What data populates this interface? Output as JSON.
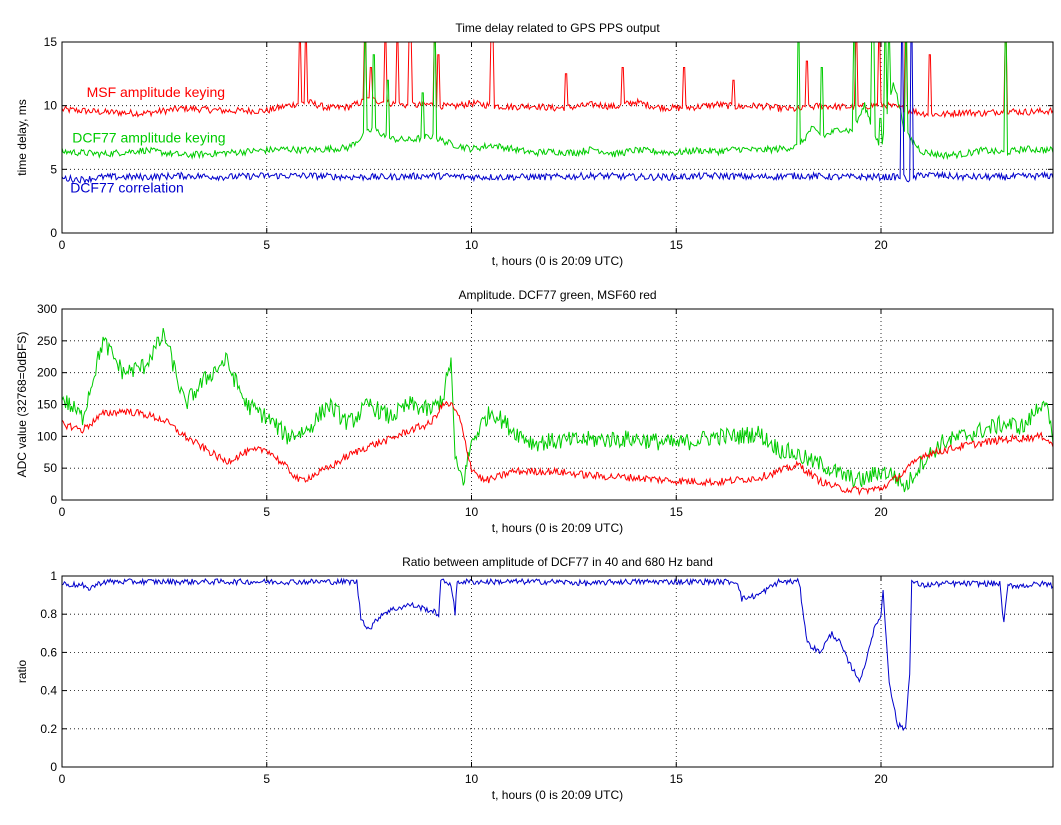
{
  "chart_data": [
    {
      "type": "line",
      "title": "Time delay related to GPS PPS output",
      "xlabel": "t, hours (0 is 20:09 UTC)",
      "ylabel": "time delay, ms",
      "xlim": [
        0,
        24.2
      ],
      "ylim": [
        0,
        15
      ],
      "xticks": [
        "0",
        "5",
        "10",
        "15",
        "20"
      ],
      "yticks": [
        "0",
        "5",
        "10",
        "15"
      ],
      "grid": true,
      "annotations": [
        {
          "text": "MSF amplitude keying",
          "color": "#ff0000",
          "x": 0.6,
          "y": 10.7
        },
        {
          "text": "DCF77 amplitude keying",
          "color": "#00cc00",
          "x": 0.25,
          "y": 7.1
        },
        {
          "text": "DCF77 correlation",
          "color": "#0000cc",
          "x": 0.2,
          "y": 3.2
        }
      ],
      "series": [
        {
          "color": "#ff0000",
          "x": [
            0,
            1,
            2,
            3,
            4,
            5,
            5.5,
            6,
            6.5,
            7,
            7.5,
            8,
            8.5,
            9,
            9.5,
            10,
            10.5,
            11,
            11.5,
            12,
            12.5,
            13,
            13.5,
            14,
            14.5,
            15,
            15.5,
            16,
            16.5,
            17,
            17.5,
            18,
            18.5,
            19,
            19.5,
            20,
            20.5,
            21,
            21.5,
            22,
            22.5,
            23,
            23.5,
            24.2
          ],
          "y": [
            9.7,
            9.5,
            9.4,
            9.8,
            9.6,
            9.6,
            10,
            10.3,
            9.8,
            9.9,
            10.5,
            10.2,
            10,
            10.1,
            9.9,
            10.2,
            10,
            9.9,
            10,
            9.8,
            9.9,
            10.1,
            9.9,
            10.3,
            9.9,
            9.8,
            9.9,
            10.1,
            9.9,
            10,
            9.8,
            9.7,
            10,
            9.9,
            9.9,
            10.1,
            9.8,
            9.4,
            9.3,
            9.5,
            9.4,
            9.6,
            9.5,
            9.6
          ],
          "spikes": [
            [
              5.8,
              15
            ],
            [
              5.95,
              15
            ],
            [
              7.4,
              15
            ],
            [
              7.55,
              13
            ],
            [
              7.9,
              15
            ],
            [
              8.2,
              15
            ],
            [
              8.5,
              15
            ],
            [
              9.1,
              15
            ],
            [
              9.2,
              14
            ],
            [
              10.5,
              15
            ],
            [
              12.3,
              12.5
            ],
            [
              13.7,
              13
            ],
            [
              15.2,
              13
            ],
            [
              16.4,
              12
            ],
            [
              18.2,
              13.5
            ],
            [
              19.4,
              15
            ],
            [
              19.95,
              15
            ],
            [
              20.6,
              15
            ],
            [
              21.2,
              14
            ],
            [
              23.05,
              15
            ]
          ]
        },
        {
          "color": "#00cc00",
          "x": [
            0,
            1,
            2,
            3,
            4,
            5,
            5.5,
            6,
            6.5,
            7,
            7.3,
            7.6,
            8,
            8.5,
            9,
            9.5,
            10,
            10.5,
            11,
            11.5,
            12,
            12.5,
            13,
            13.5,
            14,
            14.5,
            15,
            15.5,
            16,
            16.5,
            17,
            17.5,
            18,
            18.3,
            18.6,
            19,
            19.3,
            19.6,
            20,
            20.3,
            20.6,
            21,
            21.5,
            22,
            22.5,
            23,
            23.5,
            24.2
          ],
          "y": [
            6.4,
            6.2,
            6.5,
            6.1,
            6.3,
            6.5,
            6.6,
            6.5,
            6.6,
            6.7,
            7.5,
            8.2,
            7.4,
            7.3,
            7.6,
            7,
            6.6,
            6.9,
            6.6,
            6.3,
            6.4,
            6.3,
            6.6,
            6.2,
            6.5,
            6.4,
            6.3,
            6.5,
            6.4,
            6.6,
            6.5,
            6.6,
            6.8,
            8.2,
            7.6,
            8.2,
            8,
            10,
            6.5,
            12,
            7.8,
            6.4,
            6.1,
            6.2,
            6.5,
            6.3,
            6.6,
            6.5
          ],
          "spikes": [
            [
              7.4,
              15
            ],
            [
              7.6,
              14
            ],
            [
              7.95,
              12
            ],
            [
              8.8,
              11
            ],
            [
              9.1,
              15
            ],
            [
              18.0,
              15
            ],
            [
              18.55,
              13
            ],
            [
              19.35,
              15
            ],
            [
              19.8,
              15
            ],
            [
              20.0,
              9
            ],
            [
              20.1,
              15
            ],
            [
              20.2,
              15
            ],
            [
              20.6,
              15
            ],
            [
              23.05,
              15
            ]
          ]
        },
        {
          "color": "#0000cc",
          "x": [
            0,
            0.5,
            1,
            2,
            3,
            4,
            5,
            6,
            7,
            8,
            9,
            10,
            11,
            12,
            13,
            14,
            15,
            16,
            17,
            18,
            19,
            20,
            20.4,
            20.5,
            20.7,
            21,
            22,
            23,
            24.2
          ],
          "y": [
            4.3,
            4.2,
            4.4,
            4.4,
            4.5,
            4.4,
            4.5,
            4.5,
            4.4,
            4.4,
            4.5,
            4.4,
            4.4,
            4.4,
            4.5,
            4.4,
            4.4,
            4.5,
            4.4,
            4.5,
            4.4,
            4.4,
            4.4,
            4.4,
            4.2,
            4.6,
            4.4,
            4.4,
            4.5
          ],
          "spikes": [
            [
              20.5,
              15
            ],
            [
              20.75,
              15
            ]
          ]
        }
      ]
    },
    {
      "type": "line",
      "title": "Amplitude. DCF77 green, MSF60 red",
      "xlabel": "t, hours (0 is 20:09 UTC)",
      "ylabel": "ADC value (32768=0dBFS)",
      "xlim": [
        0,
        24.2
      ],
      "ylim": [
        0,
        300
      ],
      "xticks": [
        "0",
        "5",
        "10",
        "15",
        "20"
      ],
      "yticks": [
        "0",
        "50",
        "100",
        "150",
        "200",
        "250",
        "300"
      ],
      "grid": true,
      "series": [
        {
          "color": "#00cc00",
          "x": [
            0,
            0.5,
            1,
            1.5,
            2,
            2.5,
            3,
            3.5,
            4,
            4.5,
            5,
            5.5,
            6,
            6.5,
            7,
            7.5,
            8,
            8.5,
            9,
            9.3,
            9.5,
            9.6,
            9.8,
            10,
            10.3,
            10.5,
            11,
            11.5,
            12,
            13,
            14,
            15,
            16,
            16.5,
            17,
            17.5,
            18,
            18.3,
            18.6,
            19,
            19.5,
            20,
            20.3,
            20.6,
            21,
            21.5,
            22,
            22.5,
            23,
            23.5,
            24,
            24.2
          ],
          "y": [
            160,
            130,
            250,
            200,
            210,
            260,
            150,
            190,
            220,
            150,
            130,
            100,
            110,
            150,
            120,
            150,
            130,
            150,
            140,
            160,
            220,
            60,
            30,
            90,
            125,
            140,
            110,
            90,
            92,
            95,
            96,
            88,
            100,
            100,
            105,
            80,
            70,
            60,
            55,
            40,
            30,
            45,
            40,
            20,
            60,
            90,
            100,
            110,
            120,
            115,
            160,
            90
          ],
          "noise": 14
        },
        {
          "color": "#ff0000",
          "x": [
            0,
            0.5,
            1,
            1.5,
            2,
            2.5,
            3,
            3.5,
            4,
            4.5,
            5,
            5.5,
            5.8,
            6,
            6.5,
            7,
            7.5,
            8,
            8.5,
            9,
            9.3,
            9.5,
            9.7,
            10,
            10.3,
            10.6,
            11,
            12,
            13,
            14,
            15,
            16,
            17,
            18,
            18.5,
            19,
            19.5,
            20,
            20.5,
            21,
            22,
            23,
            24,
            24.2
          ],
          "y": [
            120,
            110,
            135,
            140,
            135,
            125,
            100,
            80,
            60,
            75,
            80,
            50,
            30,
            35,
            50,
            70,
            85,
            95,
            110,
            120,
            150,
            150,
            130,
            50,
            30,
            35,
            45,
            45,
            38,
            35,
            30,
            28,
            35,
            55,
            30,
            18,
            15,
            18,
            40,
            70,
            85,
            95,
            100,
            85
          ],
          "noise": 6
        }
      ]
    },
    {
      "type": "line",
      "title": "Ratio between amplitude of DCF77 in 40 and 680 Hz band",
      "xlabel": "t, hours (0 is 20:09 UTC)",
      "ylabel": "ratio",
      "xlim": [
        0,
        24.2
      ],
      "ylim": [
        0,
        1
      ],
      "xticks": [
        "0",
        "5",
        "10",
        "15",
        "20"
      ],
      "yticks": [
        "0",
        "0.2",
        "0.4",
        "0.6",
        "0.8",
        "1"
      ],
      "grid": true,
      "series": [
        {
          "color": "#0000cc",
          "x": [
            0,
            0.5,
            0.6,
            1,
            2,
            3,
            4,
            5,
            6,
            7,
            7.2,
            7.3,
            7.5,
            7.8,
            8,
            8.5,
            9,
            9.2,
            9.25,
            9.35,
            9.5,
            9.6,
            9.65,
            9.7,
            10,
            11,
            12,
            13,
            13.5,
            14,
            15,
            16,
            16.5,
            16.6,
            17,
            17.5,
            17.9,
            18,
            18.2,
            18.5,
            18.8,
            19,
            19.2,
            19.5,
            19.8,
            20,
            20.05,
            20.2,
            20.4,
            20.6,
            20.7,
            20.75,
            21,
            21.5,
            22,
            22.5,
            22.9,
            23,
            23.1,
            23.5,
            24,
            24.2
          ],
          "y": [
            0.96,
            0.95,
            0.93,
            0.97,
            0.97,
            0.97,
            0.97,
            0.97,
            0.97,
            0.97,
            0.97,
            0.78,
            0.72,
            0.8,
            0.82,
            0.85,
            0.82,
            0.8,
            0.97,
            0.97,
            0.96,
            0.8,
            0.97,
            0.97,
            0.97,
            0.97,
            0.97,
            0.96,
            0.97,
            0.97,
            0.97,
            0.97,
            0.97,
            0.88,
            0.9,
            0.97,
            0.97,
            0.97,
            0.65,
            0.6,
            0.7,
            0.65,
            0.55,
            0.45,
            0.7,
            0.8,
            0.92,
            0.45,
            0.22,
            0.2,
            0.5,
            0.97,
            0.95,
            0.96,
            0.96,
            0.96,
            0.96,
            0.75,
            0.95,
            0.95,
            0.96,
            0.95
          ],
          "noise": 0.015
        }
      ]
    }
  ]
}
